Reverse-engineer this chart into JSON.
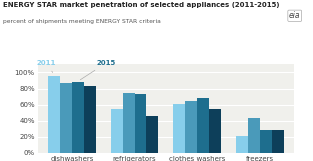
{
  "title": "ENERGY STAR market penetration of selected appliances (2011-2015)",
  "subtitle": "percent of shipments meeting ENERGY STAR criteria",
  "categories": [
    "dishwashers",
    "refrigerators",
    "clothes washers",
    "freezers"
  ],
  "series": {
    "s1": [
      96,
      55,
      61,
      21
    ],
    "s2": [
      87,
      74,
      65,
      44
    ],
    "s3": [
      88,
      73,
      68,
      28
    ],
    "s4": [
      83,
      46,
      55,
      29
    ]
  },
  "colors": {
    "s1": "#87ceeb",
    "s2": "#4a9aba",
    "s3": "#1e6e8e",
    "s4": "#0d3f5a"
  },
  "legend_2011_color": "#87ceeb",
  "legend_2015_color": "#1e6e8e",
  "ylim": [
    0,
    110
  ],
  "yticks": [
    0,
    20,
    40,
    60,
    80,
    100
  ],
  "ytick_labels": [
    "0%",
    "20%",
    "40%",
    "60%",
    "80%",
    "100%"
  ],
  "bg_color": "#ffffff",
  "plot_bg_color": "#f0f0ec",
  "title_color": "#222222",
  "subtitle_color": "#555555",
  "grid_color": "#ffffff",
  "bar_width": 0.19,
  "title_fontsize": 5.0,
  "subtitle_fontsize": 4.3,
  "tick_fontsize": 5.0,
  "eia_color": "#444444"
}
